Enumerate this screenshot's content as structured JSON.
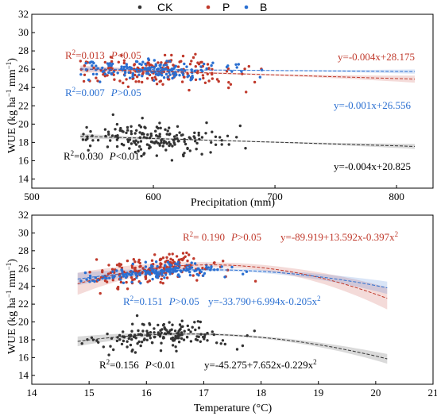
{
  "legend": {
    "items": [
      {
        "key": "CK",
        "label": "CK",
        "color": "#333333"
      },
      {
        "key": "P",
        "label": "P",
        "color": "#c0392b"
      },
      {
        "key": "B",
        "label": "B",
        "color": "#2a6fd1"
      }
    ]
  },
  "chart_data": [
    {
      "type": "scatter",
      "xlabel": "Precipitation (mm)",
      "ylabel": "WUE (kg ha",
      "ylabel_sup1": "−1",
      "ylabel_mid": " mm",
      "ylabel_sup2": "−1",
      "ylabel_end": ")",
      "xlim": [
        500,
        830
      ],
      "ylim": [
        13,
        32
      ],
      "x_ticks": [
        500,
        600,
        700,
        800
      ],
      "y_ticks": [
        14,
        16,
        18,
        20,
        22,
        24,
        26,
        28,
        30,
        32
      ],
      "x_range": [
        540,
        815
      ],
      "series": [
        {
          "name": "CK",
          "color": "#333333",
          "center": 18.4,
          "spread": 1.35,
          "fit": {
            "a0": 20.825,
            "a1": -0.004,
            "a2": 0
          },
          "band": 0.18
        },
        {
          "name": "P",
          "color": "#c0392b",
          "center": 26.0,
          "spread": 1.5,
          "fit": {
            "a0": 28.175,
            "a1": -0.004,
            "a2": 0
          },
          "band": 0.25
        },
        {
          "name": "B",
          "color": "#2a6fd1",
          "center": 25.6,
          "spread": 0.9,
          "fit": {
            "a0": 26.556,
            "a1": -0.001,
            "a2": 0
          },
          "band": 0.15
        }
      ],
      "annotations": [
        {
          "series": "P",
          "r2_lbl": "R",
          "r2_val": "=0.013",
          "p_lbl": "P",
          "p_val": "<0.05",
          "eq": "y=-0.004x+28.175"
        },
        {
          "series": "B",
          "r2_lbl": "R",
          "r2_val": "=0.007",
          "p_lbl": "P",
          "p_val": ">0.05",
          "eq": "y=-0.001x+26.556"
        },
        {
          "series": "CK",
          "r2_lbl": "R",
          "r2_val": "=0.030",
          "p_lbl": "P",
          "p_val": "<0.01",
          "eq": "y=-0.004x+20.825"
        }
      ]
    },
    {
      "type": "scatter",
      "xlabel": "Temperature (°C)",
      "ylabel": "WUE (kg ha",
      "ylabel_sup1": "−1",
      "ylabel_mid": " mm",
      "ylabel_sup2": "−1",
      "ylabel_end": ")",
      "xlim": [
        14,
        21
      ],
      "ylim": [
        13,
        32
      ],
      "x_ticks": [
        14,
        15,
        16,
        17,
        18,
        19,
        20,
        21
      ],
      "y_ticks": [
        14,
        16,
        18,
        20,
        22,
        24,
        26,
        28,
        30,
        32
      ],
      "x_range": [
        14.8,
        20.2
      ],
      "series": [
        {
          "name": "CK",
          "color": "#333333",
          "center": 18.4,
          "spread": 1.2,
          "fit": {
            "a0": -45.275,
            "a1": 7.652,
            "a2": -0.229
          },
          "band": 0.35
        },
        {
          "name": "P",
          "color": "#c0392b",
          "center": 25.6,
          "spread": 1.4,
          "fit": {
            "a0": -89.919,
            "a1": 13.592,
            "a2": -0.397
          },
          "band": 0.8
        },
        {
          "name": "B",
          "color": "#2a6fd1",
          "center": 25.4,
          "spread": 0.8,
          "fit": {
            "a0": -33.79,
            "a1": 6.994,
            "a2": -0.205
          },
          "band": 0.45
        }
      ],
      "annotations": [
        {
          "series": "P",
          "r2_lbl": "R",
          "r2_val": "= 0.190",
          "p_lbl": "P",
          "p_val": ">0.05",
          "eq": "y=-89.919+13.592x-0.397x",
          "eq_sup": "2"
        },
        {
          "series": "B",
          "r2_lbl": "R",
          "r2_val": "=0.151",
          "p_lbl": "P",
          "p_val": ">0.05",
          "eq": "y=-33.790+6.994x-0.205x",
          "eq_sup": "2"
        },
        {
          "series": "CK",
          "r2_lbl": "R",
          "r2_val": "=0.156",
          "p_lbl": "P",
          "p_val": "<0.01",
          "eq": "y=-45.275+7.652x-0.229x",
          "eq_sup": "2"
        }
      ]
    }
  ]
}
